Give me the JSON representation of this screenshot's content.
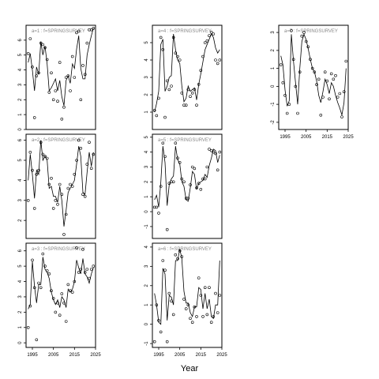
{
  "figure": {
    "xlabel": "Year"
  },
  "chart_data": [
    {
      "type": "scatter",
      "label": "a=1  :  f=SPRINGSURVEY",
      "xlim": [
        1992,
        2025
      ],
      "ylim": [
        0,
        7
      ],
      "yticks": [
        0,
        1,
        2,
        3,
        4,
        5,
        6
      ],
      "xticks": [],
      "grid": false,
      "series": [
        {
          "mode": "points",
          "x": [
            1993,
            1994,
            1995,
            1996,
            1997,
            1998,
            1999,
            2000,
            2001,
            2002,
            2003,
            2004,
            2005,
            2006,
            2007,
            2008,
            2009,
            2010,
            2011,
            2012,
            2013,
            2014,
            2015,
            2016,
            2017,
            2018,
            2019,
            2020,
            2021,
            2022,
            2023,
            2024
          ],
          "y": [
            5.1,
            6.1,
            4.2,
            0.8,
            3.6,
            3.8,
            5.8,
            5.7,
            5.5,
            4.7,
            2.5,
            3.8,
            2.0,
            2.6,
            1.9,
            4.5,
            0.7,
            1.5,
            3.5,
            3.6,
            2.6,
            4.9,
            3.5,
            6.5,
            6.6,
            2.0,
            4.3,
            3.7,
            5.8,
            6.7,
            6.7,
            6.8
          ]
        },
        {
          "mode": "line",
          "x": [
            1993,
            1994,
            1995,
            1996,
            1997,
            1998,
            1999,
            2000,
            2001,
            2002,
            2003,
            2004,
            2005,
            2006,
            2007,
            2008,
            2009,
            2010,
            2011,
            2012,
            2013,
            2014,
            2015,
            2016,
            2017,
            2018,
            2019,
            2020,
            2021,
            2022,
            2023,
            2024
          ],
          "y": [
            4.5,
            5.1,
            4.0,
            2.6,
            4.2,
            3.7,
            5.9,
            5.0,
            5.6,
            4.4,
            2.6,
            2.8,
            3.1,
            3.4,
            2.6,
            3.3,
            2.2,
            1.6,
            3.3,
            3.6,
            3.1,
            4.4,
            4.1,
            5.4,
            6.3,
            4.1,
            3.4,
            3.4,
            5.0,
            5.7,
            6.3,
            6.8
          ]
        }
      ]
    },
    {
      "type": "scatter",
      "label": "a=4  :  f=SPRINGSURVEY",
      "xlim": [
        1992,
        2025
      ],
      "ylim": [
        0,
        6
      ],
      "yticks": [
        1,
        2,
        3,
        4,
        5
      ],
      "xticks": [],
      "grid": false,
      "series": [
        {
          "mode": "points",
          "x": [
            1993,
            1994,
            1995,
            1996,
            1997,
            1998,
            1999,
            2000,
            2001,
            2002,
            2003,
            2004,
            2005,
            2006,
            2007,
            2008,
            2009,
            2010,
            2011,
            2012,
            2013,
            2014,
            2015,
            2016,
            2017,
            2018,
            2019,
            2020,
            2021,
            2022,
            2023,
            2024
          ],
          "y": [
            1.1,
            0.8,
            1.8,
            5.3,
            4.6,
            0.7,
            2.8,
            2.3,
            2.5,
            5.3,
            4.4,
            4.2,
            4.0,
            2.1,
            1.4,
            1.4,
            2.3,
            1.9,
            2.1,
            2.3,
            1.4,
            2.6,
            3.4,
            4.2,
            5.0,
            5.1,
            5.4,
            5.6,
            5.5,
            4.0,
            3.8,
            4.0
          ]
        },
        {
          "mode": "line",
          "x": [
            1993,
            1994,
            1995,
            1996,
            1997,
            1998,
            1999,
            2000,
            2001,
            2002,
            2003,
            2004,
            2005,
            2006,
            2007,
            2008,
            2009,
            2010,
            2011,
            2012,
            2013,
            2014,
            2015,
            2016,
            2017,
            2018,
            2019,
            2020,
            2021,
            2022,
            2023,
            2024
          ],
          "y": [
            1.0,
            1.5,
            2.2,
            4.9,
            5.2,
            2.2,
            2.5,
            3.0,
            3.1,
            5.5,
            4.6,
            4.0,
            3.8,
            2.5,
            1.6,
            1.8,
            2.5,
            2.2,
            2.3,
            2.4,
            1.7,
            2.6,
            3.2,
            3.9,
            4.6,
            4.9,
            5.2,
            5.5,
            5.3,
            4.7,
            4.4,
            4.6
          ]
        }
      ]
    },
    {
      "type": "scatter",
      "label": "a=7  :  f=SPRINGSURVEY",
      "xlim": [
        1992,
        2025
      ],
      "ylim": [
        -2.4,
        3.4
      ],
      "yticks": [
        -2,
        -1,
        0,
        1,
        2,
        3
      ],
      "xticks": [
        1995,
        2005,
        2015,
        2025
      ],
      "grid": false,
      "series": [
        {
          "mode": "points",
          "x": [
            1993,
            1994,
            1995,
            1996,
            1997,
            1998,
            1999,
            2000,
            2001,
            2002,
            2003,
            2004,
            2005,
            2006,
            2007,
            2008,
            2009,
            2010,
            2011,
            2012,
            2013,
            2014,
            2015,
            2016,
            2017,
            2018,
            2019,
            2020,
            2021,
            2022,
            2023,
            2024
          ],
          "y": [
            1.2,
            0.2,
            -0.5,
            -1.5,
            -1.0,
            3.1,
            1.5,
            0.0,
            -1.5,
            0.8,
            2.8,
            3.0,
            2.5,
            2.2,
            1.5,
            1.0,
            0.8,
            0.1,
            0.4,
            -1.6,
            -0.6,
            0.8,
            0.3,
            -0.7,
            0.7,
            0.4,
            0.6,
            -0.6,
            -0.4,
            -1.7,
            -0.3,
            1.4
          ]
        },
        {
          "mode": "line",
          "x": [
            1993,
            1994,
            1995,
            1996,
            1997,
            1998,
            1999,
            2000,
            2001,
            2002,
            2003,
            2004,
            2005,
            2006,
            2007,
            2008,
            2009,
            2010,
            2011,
            2012,
            2013,
            2014,
            2015,
            2016,
            2017,
            2018,
            2019,
            2020,
            2021,
            2022,
            2023,
            2024
          ],
          "y": [
            1.7,
            1.2,
            -0.2,
            -1.1,
            -0.8,
            2.9,
            1.4,
            0.2,
            -1.0,
            1.0,
            2.5,
            2.9,
            2.6,
            2.1,
            1.5,
            1.0,
            0.8,
            0.3,
            -0.5,
            -0.9,
            -0.3,
            0.4,
            0.1,
            -0.4,
            0.2,
            0.0,
            -0.5,
            -0.9,
            -1.2,
            -1.6,
            -0.9,
            1.0
          ]
        }
      ]
    },
    {
      "type": "scatter",
      "label": "a=2  :  f=SPRINGSURVEY",
      "xlim": [
        1992,
        2025
      ],
      "ylim": [
        1.1,
        6.3
      ],
      "yticks": [
        2,
        3,
        4,
        5,
        6
      ],
      "xticks": [],
      "grid": false,
      "series": [
        {
          "mode": "points",
          "x": [
            1993,
            1994,
            1995,
            1996,
            1997,
            1998,
            1999,
            2000,
            2001,
            2002,
            2003,
            2004,
            2005,
            2006,
            2007,
            2008,
            2009,
            2010,
            2011,
            2012,
            2013,
            2014,
            2015,
            2016,
            2017,
            2018,
            2019,
            2020,
            2021,
            2022,
            2023,
            2024
          ],
          "y": [
            3.0,
            5.4,
            4.5,
            2.6,
            4.3,
            4.5,
            5.9,
            5.3,
            5.2,
            5.1,
            3.8,
            4.1,
            2.6,
            3.0,
            2.8,
            3.8,
            3.3,
            1.3,
            2.3,
            3.6,
            3.8,
            3.7,
            4.3,
            5.0,
            6.0,
            5.6,
            3.3,
            3.2,
            4.8,
            5.9,
            4.6,
            5.3
          ]
        },
        {
          "mode": "line",
          "x": [
            1993,
            1994,
            1995,
            1996,
            1997,
            1998,
            1999,
            2000,
            2001,
            2002,
            2003,
            2004,
            2005,
            2006,
            2007,
            2008,
            2009,
            2010,
            2011,
            2012,
            2013,
            2014,
            2015,
            2016,
            2017,
            2018,
            2019,
            2020,
            2021,
            2022,
            2023,
            2024
          ],
          "y": [
            4.0,
            5.3,
            4.3,
            3.1,
            4.5,
            4.3,
            6.0,
            5.0,
            5.2,
            5.0,
            3.6,
            3.7,
            3.2,
            3.2,
            2.9,
            3.7,
            3.0,
            1.7,
            2.5,
            3.4,
            3.6,
            3.8,
            4.0,
            4.8,
            5.7,
            5.2,
            3.4,
            3.3,
            4.4,
            5.4,
            4.7,
            5.4
          ]
        }
      ]
    },
    {
      "type": "scatter",
      "label": "a=5  :  f=SPRINGSURVEY",
      "xlim": [
        1992,
        2025
      ],
      "ylim": [
        -1.8,
        5.2
      ],
      "yticks": [
        -1,
        0,
        1,
        2,
        3,
        4,
        5
      ],
      "xticks": [],
      "grid": false,
      "series": [
        {
          "mode": "points",
          "x": [
            1993,
            1994,
            1995,
            1996,
            1997,
            1998,
            1999,
            2000,
            2001,
            2002,
            2003,
            2004,
            2005,
            2006,
            2007,
            2008,
            2009,
            2010,
            2011,
            2012,
            2013,
            2014,
            2015,
            2016,
            2017,
            2018,
            2019,
            2020,
            2021,
            2022,
            2023,
            2024
          ],
          "y": [
            0.3,
            0.3,
            -0.1,
            1.7,
            4.6,
            3.7,
            -1.2,
            1.9,
            2.0,
            2.0,
            4.6,
            3.6,
            3.3,
            2.2,
            2.0,
            0.9,
            0.9,
            1.8,
            3.0,
            2.9,
            1.6,
            1.9,
            1.5,
            2.2,
            2.2,
            3.0,
            4.2,
            4.1,
            4.0,
            3.9,
            2.8,
            4.0
          ]
        },
        {
          "mode": "line",
          "x": [
            1993,
            1994,
            1995,
            1996,
            1997,
            1998,
            1999,
            2000,
            2001,
            2002,
            2003,
            2004,
            2005,
            2006,
            2007,
            2008,
            2009,
            2010,
            2011,
            2012,
            2013,
            2014,
            2015,
            2016,
            2017,
            2018,
            2019,
            2020,
            2021,
            2022,
            2023,
            2024
          ],
          "y": [
            0.8,
            1.1,
            0.3,
            2.0,
            4.4,
            3.3,
            0.4,
            1.8,
            2.2,
            2.4,
            4.4,
            3.5,
            3.2,
            2.0,
            1.7,
            0.8,
            0.7,
            1.6,
            2.7,
            2.5,
            1.5,
            1.9,
            2.0,
            2.1,
            2.5,
            2.3,
            3.1,
            3.6,
            4.2,
            4.1,
            3.3,
            3.8
          ]
        }
      ]
    },
    {
      "type": "scatter",
      "label": "a=3  :  f=SPRINGSURVEY",
      "xlim": [
        1992,
        2025
      ],
      "ylim": [
        -0.3,
        6.5
      ],
      "yticks": [
        0,
        1,
        2,
        3,
        4,
        5,
        6
      ],
      "xticks": [
        1995,
        2005,
        2015,
        2025
      ],
      "grid": false,
      "series": [
        {
          "mode": "points",
          "x": [
            1993,
            1994,
            1995,
            1996,
            1997,
            1998,
            1999,
            2000,
            2001,
            2002,
            2003,
            2004,
            2005,
            2006,
            2007,
            2008,
            2009,
            2010,
            2011,
            2012,
            2013,
            2014,
            2015,
            2016,
            2017,
            2018,
            2019,
            2020,
            2021,
            2022,
            2023,
            2024
          ],
          "y": [
            1.0,
            2.4,
            5.4,
            3.6,
            0.2,
            3.9,
            3.6,
            5.8,
            5.0,
            4.7,
            4.5,
            3.4,
            2.9,
            2.0,
            2.6,
            1.8,
            3.2,
            2.6,
            1.4,
            3.8,
            3.4,
            3.3,
            4.0,
            6.2,
            4.6,
            4.8,
            6.1,
            4.6,
            4.8,
            4.2,
            4.8,
            5.0
          ]
        },
        {
          "mode": "line",
          "x": [
            1993,
            1994,
            1995,
            1996,
            1997,
            1998,
            1999,
            2000,
            2001,
            2002,
            2003,
            2004,
            2005,
            2006,
            2007,
            2008,
            2009,
            2010,
            2011,
            2012,
            2013,
            2014,
            2015,
            2016,
            2017,
            2018,
            2019,
            2020,
            2021,
            2022,
            2023,
            2024
          ],
          "y": [
            2.2,
            2.5,
            5.3,
            3.7,
            2.6,
            3.8,
            3.8,
            5.6,
            4.8,
            4.6,
            4.2,
            3.3,
            2.8,
            2.5,
            2.8,
            2.3,
            3.0,
            2.8,
            2.3,
            3.5,
            3.3,
            3.5,
            4.0,
            5.4,
            4.9,
            4.5,
            5.5,
            4.5,
            4.3,
            3.9,
            4.5,
            4.9
          ]
        }
      ]
    },
    {
      "type": "scatter",
      "label": "a=6  :  f=SPRINGSURVEY",
      "xlim": [
        1992,
        2025
      ],
      "ylim": [
        -1.2,
        4.2
      ],
      "yticks": [
        -1,
        0,
        1,
        2,
        3,
        4
      ],
      "xticks": [
        1995,
        2005,
        2015,
        2025
      ],
      "grid": false,
      "series": [
        {
          "mode": "points",
          "x": [
            1993,
            1994,
            1995,
            1996,
            1997,
            1998,
            1999,
            2000,
            2001,
            2002,
            2003,
            2004,
            2005,
            2006,
            2007,
            2008,
            2009,
            2010,
            2011,
            2012,
            2013,
            2014,
            2015,
            2016,
            2017,
            2018,
            2019,
            2020,
            2021,
            2022,
            2023,
            2024
          ],
          "y": [
            -0.9,
            1.0,
            0.2,
            -0.4,
            3.3,
            2.8,
            -0.9,
            1.6,
            1.2,
            0.5,
            3.6,
            3.4,
            3.8,
            3.5,
            1.3,
            0.8,
            1.0,
            0.3,
            0.1,
            0.9,
            0.4,
            2.4,
            1.5,
            0.4,
            1.9,
            0.5,
            1.9,
            0.1,
            0.4,
            1.6,
            0.6,
            1.5
          ]
        },
        {
          "mode": "line",
          "x": [
            1993,
            1994,
            1995,
            1996,
            1997,
            1998,
            1999,
            2000,
            2001,
            2002,
            2003,
            2004,
            2005,
            2006,
            2007,
            2008,
            2009,
            2010,
            2011,
            2012,
            2013,
            2014,
            2015,
            2016,
            2017,
            2018,
            2019,
            2020,
            2021,
            2022,
            2023,
            2024
          ],
          "y": [
            1.6,
            1.0,
            0.1,
            0.0,
            2.9,
            2.6,
            0.2,
            1.5,
            1.4,
            1.0,
            3.3,
            3.3,
            3.9,
            3.4,
            1.7,
            1.1,
            1.1,
            0.6,
            0.4,
            0.9,
            0.9,
            1.9,
            1.8,
            0.8,
            1.6,
            0.8,
            1.3,
            0.4,
            0.3,
            1.0,
            1.0,
            3.3
          ]
        }
      ]
    }
  ]
}
